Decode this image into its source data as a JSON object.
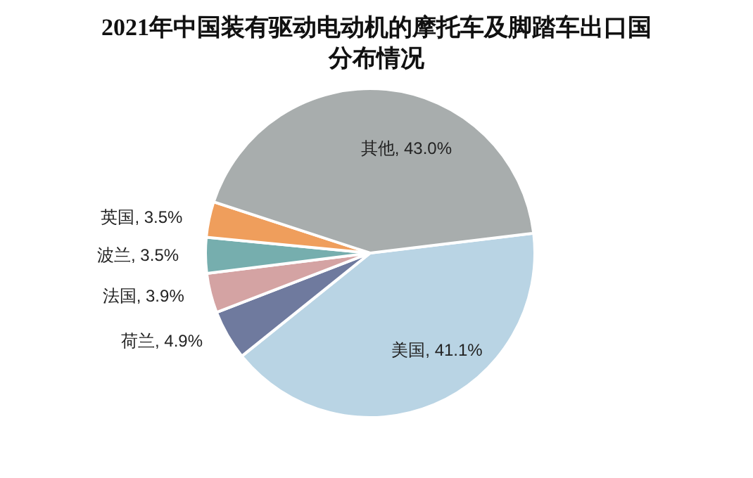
{
  "chart_data": {
    "type": "pie",
    "title": "2021年中国装有驱动电动机的摩托车及脚踏车出口国分布情况",
    "categories": [
      "美国",
      "荷兰",
      "法国",
      "波兰",
      "英国",
      "其他"
    ],
    "values": [
      41.1,
      4.9,
      3.9,
      3.5,
      3.5,
      43.0
    ],
    "colors": [
      "#b9d4e4",
      "#6f7a9e",
      "#d4a3a3",
      "#76aeae",
      "#ef9e5c",
      "#a8adad"
    ],
    "value_labels": [
      ", 41.1%",
      ", 4.9%",
      ", 3.9%",
      ", 3.5%",
      ", 3.5%",
      ", 43.0%"
    ]
  }
}
